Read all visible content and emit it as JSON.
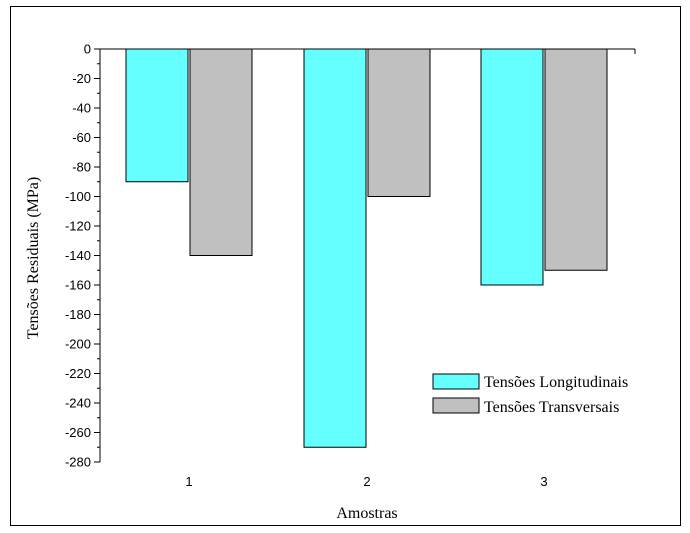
{
  "chart_data": {
    "type": "bar",
    "categories": [
      "1",
      "2",
      "3"
    ],
    "series": [
      {
        "name": "Tensões Longitudinais",
        "color": "#66ffff",
        "values": [
          -90,
          -270,
          -160
        ]
      },
      {
        "name": "Tensões Transversais",
        "color": "#c0c0c0",
        "values": [
          -140,
          -100,
          -150
        ]
      }
    ],
    "title": "",
    "xlabel": "Amostras",
    "ylabel": "Tensões Residuais (MPa)",
    "ylim": [
      -280,
      0
    ],
    "yticks": [
      "0",
      "-20",
      "-40",
      "-60",
      "-80",
      "-100",
      "-120",
      "-140",
      "-160",
      "-180",
      "-200",
      "-220",
      "-240",
      "-260",
      "-280"
    ],
    "grid": false,
    "legend_position": "lower-right"
  }
}
